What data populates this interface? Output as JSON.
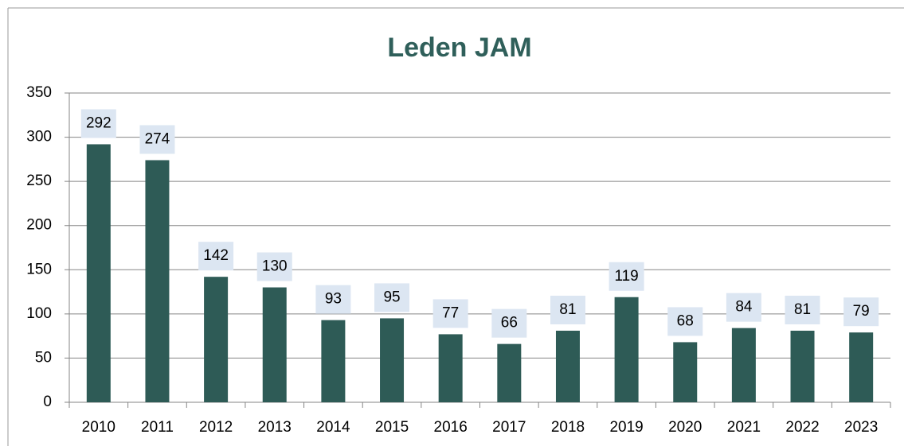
{
  "chart_data": {
    "type": "bar",
    "title": "Leden JAM",
    "categories": [
      "2010",
      "2011",
      "2012",
      "2013",
      "2014",
      "2015",
      "2016",
      "2017",
      "2018",
      "2019",
      "2020",
      "2021",
      "2022",
      "2023"
    ],
    "values": [
      292,
      274,
      142,
      130,
      93,
      95,
      77,
      66,
      81,
      119,
      68,
      84,
      81,
      79
    ],
    "color": "#2e5b56",
    "ylim": [
      0,
      350
    ],
    "yticks": [
      0,
      50,
      100,
      150,
      200,
      250,
      300,
      350
    ],
    "grid": true
  }
}
